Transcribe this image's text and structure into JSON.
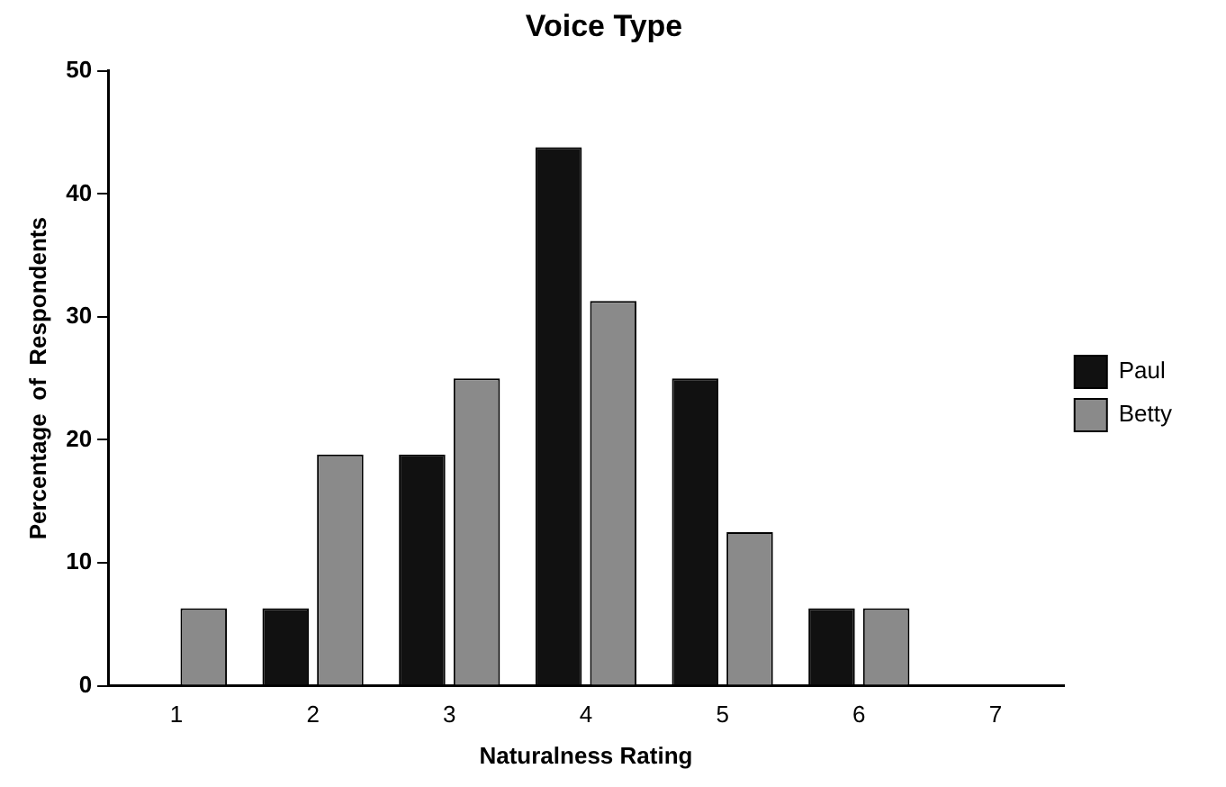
{
  "chart_data": {
    "type": "bar",
    "title": "Voice Type",
    "xlabel": "Naturalness Rating",
    "ylabel": "Percentage  of  Respondents",
    "categories": [
      "1",
      "2",
      "3",
      "4",
      "5",
      "6",
      "7"
    ],
    "series": [
      {
        "name": "Paul",
        "color": "#111111",
        "values": [
          0,
          6.3,
          18.8,
          43.8,
          25,
          6.3,
          0
        ]
      },
      {
        "name": "Betty",
        "color": "#8a8a8a",
        "values": [
          6.3,
          18.8,
          25,
          31.3,
          12.5,
          6.3,
          0
        ]
      }
    ],
    "ylim": [
      0,
      50
    ],
    "yticks": [
      0,
      10,
      20,
      30,
      40,
      50
    ],
    "grid": false,
    "legend": "right"
  }
}
